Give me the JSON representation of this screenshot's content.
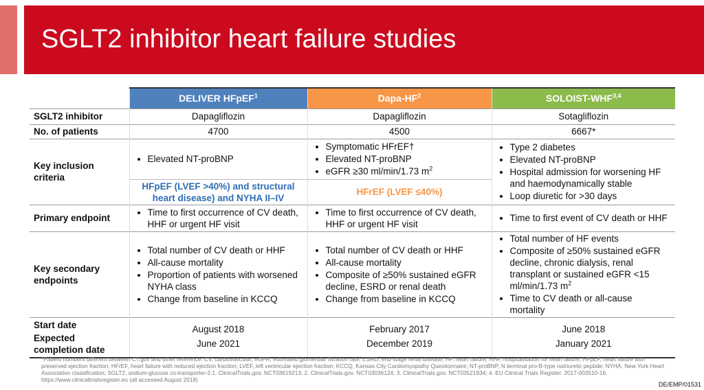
{
  "header": {
    "title": "SGLT2 inhibitor heart failure studies"
  },
  "table": {
    "columns": [
      {
        "text": "DELIVER HFpEF",
        "sup": "1",
        "color": "#4f81bd"
      },
      {
        "text": "Dapa-HF",
        "sup": "2",
        "color": "#f79646"
      },
      {
        "text": "SOLOIST-WHF",
        "sup": "3,4",
        "color": "#8cbb4c"
      }
    ],
    "rows": [
      {
        "label": "SGLT2 inhibitor",
        "cells": [
          "Dapagliflozin",
          "Dapagliflozin",
          "Sotagliflozin"
        ]
      },
      {
        "label": "No. of patients",
        "cells": [
          "4700",
          "4500",
          "6667*"
        ]
      },
      {
        "label": "Key inclusion criteria",
        "cells": [
          [
            "Elevated NT-proBNP"
          ],
          [
            "Symptomatic HFrEF†",
            "Elevated NT-proBNP",
            {
              "text": "eGFR ≥30 ml/min/1.73 m",
              "sup": "2"
            }
          ],
          [
            "Type 2 diabetes",
            "Elevated NT-proBNP",
            "Hospital admission for worsening HF and haemodynamically stable",
            "Loop diuretic for >30 days"
          ]
        ],
        "notes": [
          "HFpEF (LVEF >40%) and structural heart disease) and NYHA II–IV",
          "HFrEF (LVEF ≤40%)"
        ]
      },
      {
        "label": "Primary endpoint",
        "cells": [
          [
            "Time to first occurrence of CV death, HHF or urgent HF visit"
          ],
          [
            "Time to first occurrence of CV death, HHF or urgent HF visit"
          ],
          [
            "Time to first event of CV death or HHF"
          ]
        ]
      },
      {
        "label": "Key secondary endpoints",
        "cells": [
          [
            "Total number of CV death or HHF",
            "All-cause mortality",
            "Proportion of patients with worsened NYHA class",
            "Change from baseline in KCCQ"
          ],
          [
            "Total number of CV death or HHF",
            "All-cause mortality",
            "Composite of ≥50% sustained eGFR decline, ESRD or renal death",
            "Change from baseline in KCCQ"
          ],
          [
            "Total number of HF events",
            {
              "text": "Composite of ≥50% sustained eGFR decline, chronic dialysis, renal transplant or sustained eGFR <15 ml/min/1.73 m",
              "sup": "2"
            },
            "Time to CV death or all-cause mortality"
          ]
        ]
      },
      {
        "labels": [
          "Start date",
          "Expected completion date"
        ],
        "cells": [
          [
            "August 2018",
            "June 2021"
          ],
          [
            "February 2017",
            "December 2019"
          ],
          [
            "June 2018",
            "January 2021"
          ]
        ]
      }
    ]
  },
  "footnote": "*Patient numbers different between CT.gov and other reference. CV, cardiovascular; eGFR, estimated glomerular filtration rate; ESRD, end-stage renal disease; HF, heart failure; HHF, hospitalisation for heart failure; HFpEF, heart failure with preserved ejection fraction; HFrEF, heart failure with reduced ejection fraction; LVEF, left ventricular ejection fraction; KCCQ, Kansas City Cardiomyopathy Questionnaire; NT-proBNP, N terminal pro-B-type natriuretic peptide; NYHA, New York Heart Association classification; SGLT2, sodium-glucose co-transporter-2.1. ClinicalTrials.gov. NCT03619213; 2. ClinicalTrials.gov. NCT03036124; 3. ClinicalTrials.gov. NCT03521934; 4. EU Clinical Trials Register. 2017-003510-16. https://www.clinicaltrialsregister.eu (all accessed August 2018)",
  "code": "DE/EMP/01531"
}
